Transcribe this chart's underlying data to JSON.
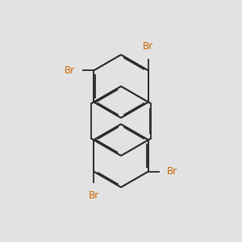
{
  "background_color": "#e2e2e2",
  "bond_color": "#2a2a2a",
  "br_color": "#cc6600",
  "line_width": 1.3,
  "dbo": 0.018,
  "figsize": [
    3.0,
    3.0
  ],
  "dpi": 100,
  "xlim": [
    -1.8,
    1.8
  ],
  "ylim": [
    -1.9,
    1.9
  ]
}
